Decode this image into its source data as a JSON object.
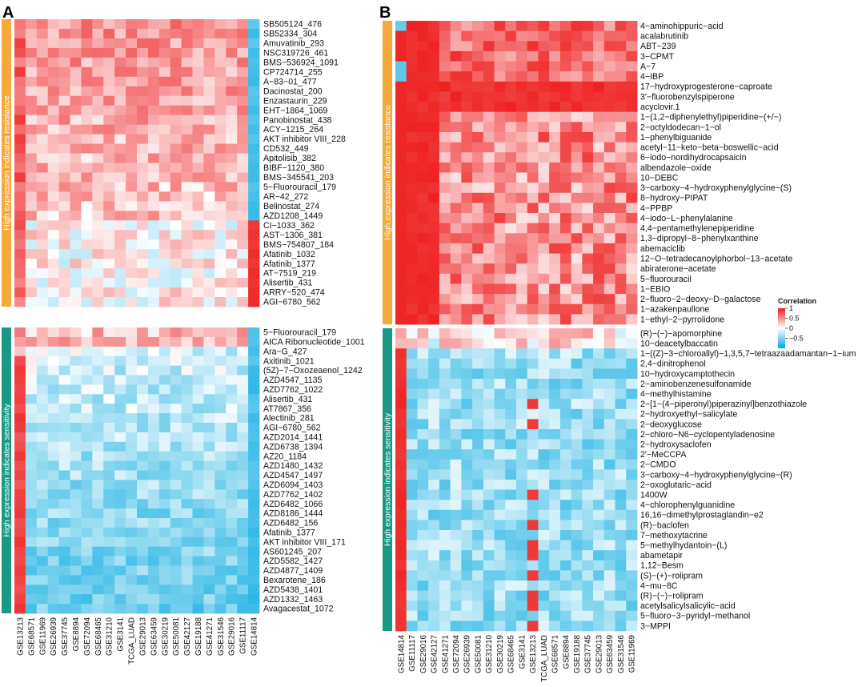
{
  "chart_data": {
    "type": "heatmap",
    "colorscale": {
      "min": -1,
      "mid": 0,
      "max": 1,
      "low_color": "#00a8df",
      "mid_color": "#ffffff",
      "high_color": "#ee1c1c"
    },
    "legend": {
      "title": "Correlation",
      "ticks": [
        "1",
        "0.5",
        "0",
        "−0.5"
      ],
      "tick_values": [
        1,
        0.5,
        0,
        -0.5
      ]
    },
    "panels": [
      {
        "letter": "A",
        "columns": [
          "GSE13213",
          "GSE68571",
          "GSE11969",
          "GSE26939",
          "GSE37745",
          "GSE8894",
          "GSE72094",
          "GSE68465",
          "GSE31210",
          "GSE3141",
          "TCGA_LUAD",
          "GSE29013",
          "GSE63459",
          "GSE30219",
          "GSE50081",
          "GSE42127",
          "GSE19188",
          "GSE41271",
          "GSE31546",
          "GSE29016",
          "GSE11117",
          "GSE14814"
        ],
        "groups": [
          {
            "label": "High expression indicates resistance",
            "color": "#f5a93b",
            "rows": [
              "SB505124_476",
              "SB52334_304",
              "Amuvatinib_293",
              "NSC319726_461",
              "BMS−536924_1091",
              "CP724714_255",
              "A−83−01_477",
              "Dacinostat_200",
              "Enzastaurin_229",
              "EHT−1864_1069",
              "Panobinostat_438",
              "ACY−1215_264",
              "AKT inhibitor VIII_228",
              "CD532_449",
              "Apitolisib_382",
              "BIBF−1120_380",
              "BMS−345541_203",
              "5−Fluorouracil_179",
              "AR−42_272",
              "Belinostat_274",
              "AZD1208_1449",
              "CI−1033_362",
              "AST−1306_381",
              "BMS−754807_184",
              "Afatinib_1032",
              "Afatinib_1377",
              "AT−7519_219",
              "Alisertib_431",
              "ARRY−520_474",
              "AGI−6780_562"
            ]
          },
          {
            "label": "High expression indicates sensitivity",
            "color": "#1a9a85",
            "rows": [
              "5−Fluorouracil_179",
              "AICA Ribonucleotide_1001",
              "Ara−G_427",
              "Axitinib_1021",
              "(5Z)−7−Oxozeaenol_1242",
              "AZD4547_1135",
              "AZD7762_1022",
              "Alisertib_431",
              "AT7867_356",
              "Alectinib_281",
              "AGI−6780_562",
              "AZD2014_1441",
              "AZD6738_1394",
              "AZ20_1184",
              "AZD1480_1432",
              "AZD4547_1497",
              "AZD6094_1403",
              "AZD7762_1402",
              "AZD6482_1066",
              "AZD8186_1444",
              "AZD6482_156",
              "Afatinib_1377",
              "AKT inhibitor VIII_171",
              "AS601245_207",
              "AZD5582_1427",
              "AZD4877_1409",
              "Bexarotene_186",
              "AZD5438_1401",
              "AZD1332_1463",
              "Avagacestat_1072"
            ]
          }
        ]
      },
      {
        "letter": "B",
        "columns": [
          "GSE14814",
          "GSE11117",
          "GSE29016",
          "GSE42127",
          "GSE41271",
          "GSE72094",
          "GSE26939",
          "GSE50081",
          "GSE31210",
          "GSE30219",
          "GSE68465",
          "GSE3141",
          "GSE13213",
          "TCGA_LUAD",
          "GSE68571",
          "GSE8894",
          "GSE19188",
          "GSE37745",
          "GSE29013",
          "GSE63459",
          "GSE31546",
          "GSE11969"
        ],
        "groups": [
          {
            "label": "High expression indicates resistance",
            "color": "#f5a93b",
            "rows": [
              "4−aminohippuric−acid",
              "acalabrutinib",
              "ABT−239",
              "3−CPMT",
              "A−7",
              "4−IBP",
              "17−hydroxyprogesterone−caproate",
              "3'−fluorobenzylspiperone",
              "acyclovir.1",
              "1−(1,2−diphenylethyl)piperidine−(+/−)",
              "2−octyldodecan−1−ol",
              "1−phenylbiguanide",
              "acetyl−11−keto−beta−boswellic−acid",
              "6−iodo−nordihydrocapsaicin",
              "albendazole−oxide",
              "10−DEBC",
              "3−carboxy−4−hydroxyphenylglycine−(S)",
              "8−hydroxy−PIPAT",
              "4−PPBP",
              "4−iodo−L−phenylalanine",
              "4,4−pentamethylenepiperidine",
              "1,3−dipropyl−8−phenylxanthine",
              "abemaciclib",
              "12−O−tetradecanoylphorbol−13−acetate",
              "abiraterone−acetate",
              "5−fluorouracil",
              "1−EBIO",
              "2−fluoro−2−deoxy−D−galactose",
              "1−azakenpaullone",
              "1−ethyl−2−pyrrolidone"
            ]
          },
          {
            "label": "High expression indicates sensitivity",
            "color": "#1a9a85",
            "rows": [
              "(R)−(−)−apomorphine",
              "10−deacetylbaccatin",
              "1−((Z)−3−chloroallyl)−1,3,5,7−tetraazaadamantan−1−ium",
              "2,4−dinitrophenol",
              "10−hydroxycamptothecin",
              "2−aminobenzenesulfonamide",
              "4−methylhistamine",
              "2−[1−(4−piperonyl)piperazinyl]benzothiazole",
              "2−hydroxyethyl−salicylate",
              "2−deoxyglucose",
              "2−chloro−N6−cyclopentyladenosine",
              "2−hydroxysaclofen",
              "2'−MeCCPA",
              "2−CMDO",
              "3−carboxy−4−hydroxyphenylglycine−(R)",
              "2−oxoglutaric−acid",
              "1400W",
              "4−chlorophenylguanidine",
              "16,16−dimethylprostaglandin−e2",
              "(R)−baclofen",
              "7−methoxytacrine",
              "5−methylhydantoin−(L)",
              "abametapir",
              "1,12−Besm",
              "(S)−(+)−rolipram",
              "4−mu−8C",
              "(R)−(−)−rolipram",
              "acetylsalicylsalicylic−acid",
              "5−fluoro−3−pyridyl−methanol",
              "3−MPPI"
            ]
          }
        ]
      }
    ]
  }
}
